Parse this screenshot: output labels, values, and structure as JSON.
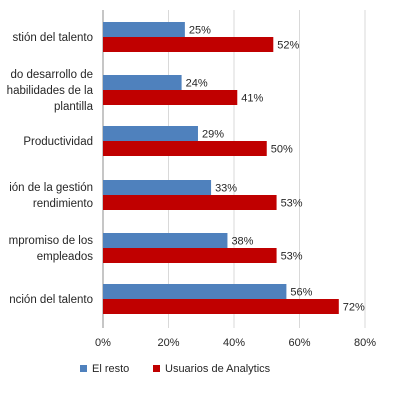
{
  "chart_data": {
    "type": "bar",
    "orientation": "horizontal",
    "categories": [
      [
        "stión del talento"
      ],
      [
        "do desarrollo de",
        "habilidades de la",
        "plantilla"
      ],
      [
        "Productividad"
      ],
      [
        "ión de la gestión",
        "rendimiento"
      ],
      [
        "mpromiso de los",
        "empleados"
      ],
      [
        "nción del talento"
      ]
    ],
    "series": [
      {
        "name": "El resto",
        "color": "#4f81bd",
        "values": [
          25,
          24,
          29,
          33,
          38,
          56
        ]
      },
      {
        "name": "Usuarios de Analytics",
        "color": "#c00000",
        "values": [
          52,
          41,
          50,
          53,
          53,
          72
        ]
      }
    ],
    "value_label_suffix": "%",
    "xlim": [
      0,
      80
    ],
    "xticks": [
      0,
      20,
      40,
      60,
      80
    ],
    "xtick_labels": [
      "0%",
      "20%",
      "40%",
      "60%",
      "80%"
    ],
    "grid": "vertical",
    "legend": "bottom"
  }
}
